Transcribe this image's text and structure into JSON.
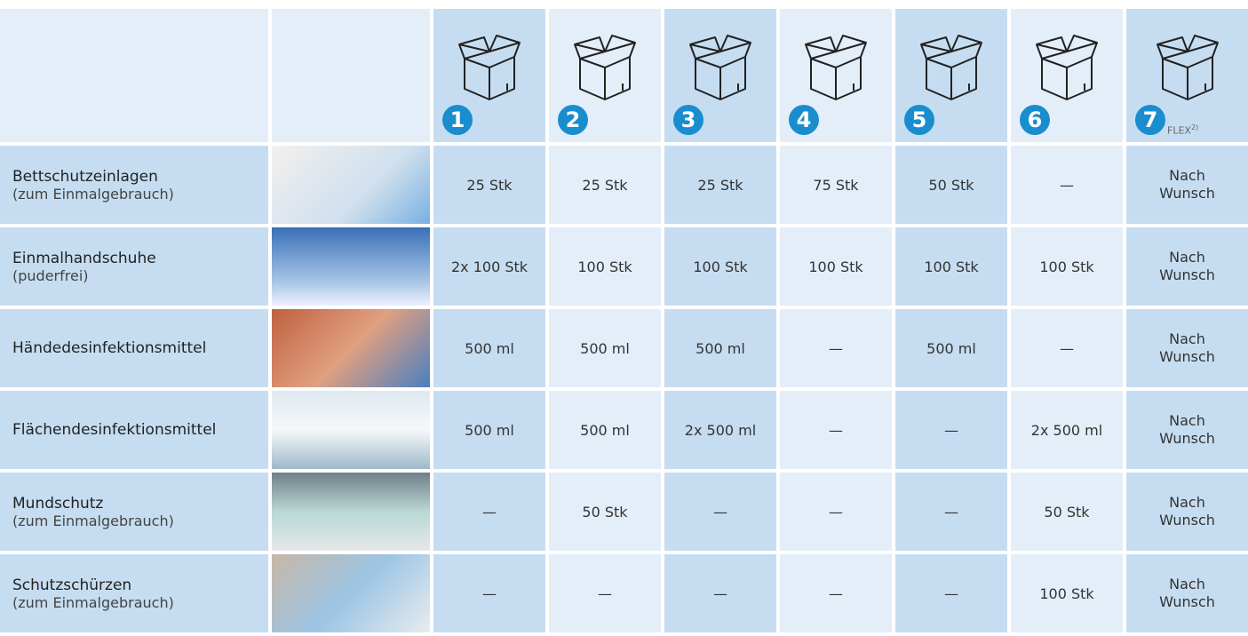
{
  "header": {
    "columns": [
      {
        "number": "1"
      },
      {
        "number": "2"
      },
      {
        "number": "3"
      },
      {
        "number": "4"
      },
      {
        "number": "5"
      },
      {
        "number": "6"
      },
      {
        "number": "7",
        "note": "FLEX",
        "sup": "2)"
      }
    ]
  },
  "rows": [
    {
      "name": "Bettschutzeinlagen",
      "sub": "(zum Einmalgebrauch)",
      "values": [
        "25 Stk",
        "25 Stk",
        "25 Stk",
        "75 Stk",
        "50 Stk",
        "—",
        "Nach Wunsch"
      ]
    },
    {
      "name": "Einmalhandschuhe",
      "sub": "(puderfrei)",
      "values": [
        "2x 100 Stk",
        "100 Stk",
        "100 Stk",
        "100 Stk",
        "100 Stk",
        "100 Stk",
        "Nach Wunsch"
      ]
    },
    {
      "name": "Händedesinfektionsmittel",
      "values": [
        "500 ml",
        "500 ml",
        "500 ml",
        "—",
        "500 ml",
        "—",
        "Nach Wunsch"
      ]
    },
    {
      "name": "Flächendesinfektionsmittel",
      "values": [
        "500 ml",
        "500 ml",
        "2x 500 ml",
        "—",
        "—",
        "2x 500 ml",
        "Nach Wunsch"
      ]
    },
    {
      "name": "Mundschutz",
      "sub": "(zum Einmalgebrauch)",
      "values": [
        "—",
        "50 Stk",
        "—",
        "—",
        "—",
        "50 Stk",
        "Nach Wunsch"
      ]
    },
    {
      "name": "Schutzschürzen",
      "sub": "(zum Einmalgebrauch)",
      "values": [
        "—",
        "—",
        "—",
        "—",
        "—",
        "100 Stk",
        "Nach Wunsch"
      ]
    }
  ]
}
